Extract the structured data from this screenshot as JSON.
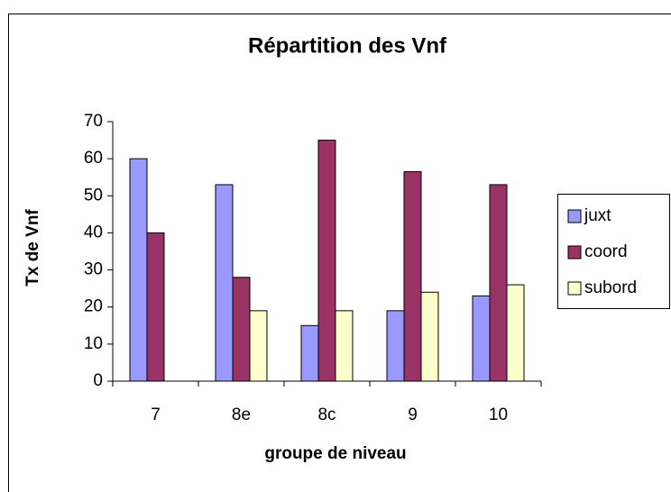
{
  "chart_data": {
    "type": "bar",
    "title": "Répartition des Vnf",
    "x_label": "groupe de niveau",
    "y_label": "Tx de Vnf",
    "categories": [
      "7",
      "8e",
      "8c",
      "9",
      "10"
    ],
    "series": [
      {
        "name": "juxt",
        "color": "#9999ff",
        "values": [
          60,
          53,
          15,
          19,
          23
        ]
      },
      {
        "name": "coord",
        "color": "#993366",
        "values": [
          40,
          28,
          65,
          56.5,
          53
        ]
      },
      {
        "name": "subord",
        "color": "#ffffcc",
        "values": [
          null,
          19,
          19,
          24,
          26
        ]
      }
    ],
    "ylim": [
      0,
      70
    ],
    "yticks": [
      0,
      10,
      20,
      30,
      40,
      50,
      60,
      70
    ],
    "grid": false,
    "legend": "right"
  }
}
